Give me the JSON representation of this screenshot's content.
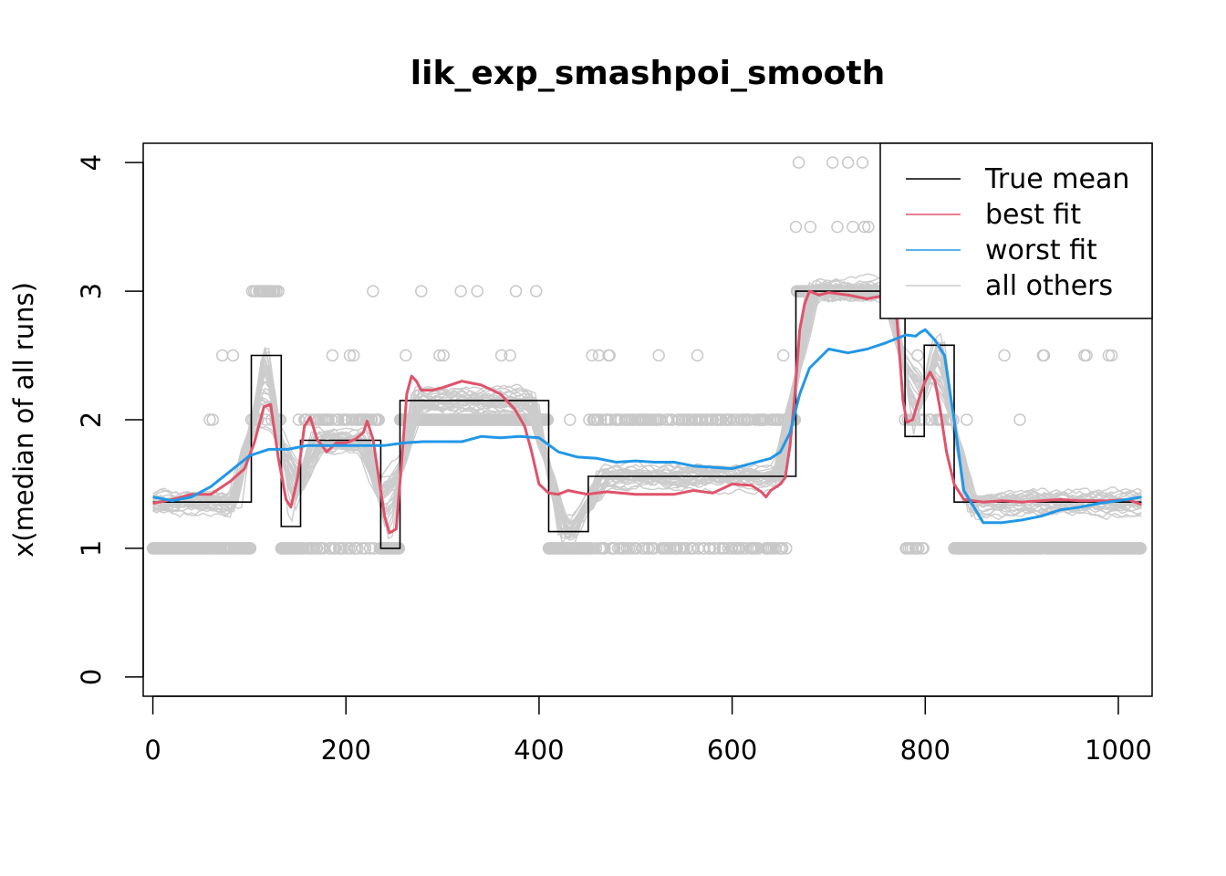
{
  "chart_data": {
    "type": "line",
    "title": "lik_exp_smashpoi_smooth",
    "xlabel": "",
    "ylabel": "x(median of all runs)",
    "xlim": [
      -10,
      1035
    ],
    "ylim": [
      -0.15,
      4.15
    ],
    "xticks": [
      "0",
      "200",
      "400",
      "600",
      "800",
      "1000"
    ],
    "xtick_values": [
      0,
      200,
      400,
      600,
      800,
      1000
    ],
    "yticks": [
      "0",
      "1",
      "2",
      "3",
      "4"
    ],
    "ytick_values": [
      0,
      1,
      2,
      3,
      4
    ],
    "legend_position": "top-right",
    "colors": {
      "true_mean": "#000000",
      "best_fit": "#DF536B",
      "worst_fit": "#2297E6",
      "all_others": "#CCCCCC",
      "points": "#C8C8C8"
    },
    "legend": [
      {
        "label": "True mean",
        "color": "#000000"
      },
      {
        "label": "best fit",
        "color": "#DF536B"
      },
      {
        "label": "worst fit",
        "color": "#2297E6"
      },
      {
        "label": "all others",
        "color": "#CCCCCC"
      }
    ],
    "true_mean_steps": [
      {
        "x0": 0,
        "x1": 102,
        "y": 1.36
      },
      {
        "x0": 102,
        "x1": 133,
        "y": 2.5
      },
      {
        "x0": 133,
        "x1": 153,
        "y": 1.17
      },
      {
        "x0": 153,
        "x1": 236,
        "y": 1.84
      },
      {
        "x0": 236,
        "x1": 256,
        "y": 1.0
      },
      {
        "x0": 256,
        "x1": 410,
        "y": 2.15
      },
      {
        "x0": 410,
        "x1": 451,
        "y": 1.13
      },
      {
        "x0": 451,
        "x1": 666,
        "y": 1.56
      },
      {
        "x0": 666,
        "x1": 779,
        "y": 3.0
      },
      {
        "x0": 779,
        "x1": 799,
        "y": 1.87
      },
      {
        "x0": 799,
        "x1": 830,
        "y": 2.58
      },
      {
        "x0": 830,
        "x1": 1024,
        "y": 1.36
      }
    ],
    "series": [
      {
        "name": "best fit",
        "x": [
          0,
          20,
          40,
          60,
          80,
          95,
          105,
          115,
          122,
          130,
          138,
          143,
          150,
          157,
          163,
          170,
          180,
          190,
          200,
          210,
          218,
          222,
          228,
          235,
          240,
          245,
          252,
          258,
          263,
          268,
          273,
          278,
          290,
          300,
          320,
          340,
          360,
          375,
          385,
          392,
          400,
          410,
          420,
          430,
          450,
          470,
          500,
          540,
          560,
          580,
          600,
          620,
          630,
          635,
          640,
          650,
          655,
          660,
          665,
          670,
          675,
          680,
          690,
          700,
          720,
          740,
          760,
          765,
          770,
          773,
          777,
          781,
          787,
          795,
          800,
          805,
          810,
          815,
          822,
          830,
          840,
          860,
          880,
          900,
          940,
          960,
          990,
          1010,
          1024
        ],
        "y": [
          1.35,
          1.38,
          1.42,
          1.42,
          1.52,
          1.62,
          1.82,
          2.1,
          2.12,
          1.7,
          1.38,
          1.32,
          1.55,
          1.95,
          2.02,
          1.85,
          1.75,
          1.82,
          1.82,
          1.85,
          1.9,
          1.99,
          1.85,
          1.5,
          1.25,
          1.12,
          1.15,
          1.7,
          2.2,
          2.34,
          2.3,
          2.23,
          2.23,
          2.25,
          2.3,
          2.27,
          2.2,
          2.08,
          1.95,
          1.76,
          1.5,
          1.43,
          1.42,
          1.45,
          1.42,
          1.44,
          1.42,
          1.42,
          1.45,
          1.43,
          1.5,
          1.49,
          1.44,
          1.4,
          1.45,
          1.5,
          1.55,
          1.8,
          2.2,
          2.7,
          2.9,
          3.0,
          2.97,
          2.99,
          2.97,
          2.94,
          2.97,
          2.97,
          2.85,
          2.55,
          2.15,
          1.98,
          2.0,
          2.2,
          2.3,
          2.37,
          2.3,
          2.1,
          1.75,
          1.5,
          1.38,
          1.36,
          1.37,
          1.36,
          1.38,
          1.37,
          1.37,
          1.38,
          1.34
        ]
      },
      {
        "name": "worst fit",
        "x": [
          0,
          20,
          40,
          60,
          80,
          100,
          120,
          140,
          160,
          200,
          240,
          260,
          280,
          300,
          320,
          340,
          360,
          380,
          400,
          420,
          440,
          460,
          480,
          500,
          520,
          540,
          560,
          580,
          600,
          620,
          640,
          650,
          660,
          670,
          680,
          700,
          720,
          740,
          760,
          780,
          790,
          795,
          800,
          810,
          820,
          830,
          840,
          860,
          880,
          900,
          920,
          940,
          960,
          980,
          1000,
          1024
        ],
        "y": [
          1.4,
          1.37,
          1.4,
          1.48,
          1.6,
          1.72,
          1.77,
          1.77,
          1.8,
          1.8,
          1.8,
          1.82,
          1.83,
          1.83,
          1.83,
          1.87,
          1.86,
          1.87,
          1.86,
          1.75,
          1.71,
          1.7,
          1.67,
          1.68,
          1.67,
          1.67,
          1.64,
          1.63,
          1.62,
          1.66,
          1.7,
          1.75,
          1.9,
          2.2,
          2.4,
          2.55,
          2.52,
          2.55,
          2.6,
          2.66,
          2.65,
          2.68,
          2.7,
          2.62,
          2.5,
          2.0,
          1.45,
          1.2,
          1.2,
          1.22,
          1.25,
          1.3,
          1.32,
          1.35,
          1.37,
          1.4
        ]
      }
    ],
    "others_count": 30
  }
}
